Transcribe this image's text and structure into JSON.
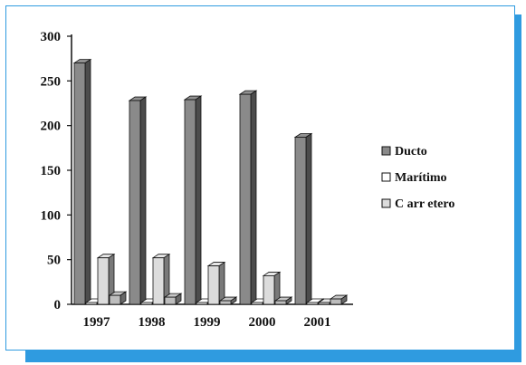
{
  "chart_data": {
    "type": "bar",
    "title": "",
    "xlabel": "",
    "ylabel": "",
    "categories": [
      "1997",
      "1998",
      "1999",
      "2000",
      "2001"
    ],
    "ylim": [
      0,
      300
    ],
    "yticks": [
      "0",
      "50",
      "100",
      "150",
      "200",
      "250",
      "300"
    ],
    "series": [
      {
        "name": "Ducto",
        "values": [
          270,
          228,
          229,
          235,
          187
        ],
        "color": "#8a8a8a"
      },
      {
        "name": "Marítimo",
        "values": [
          2,
          2,
          2,
          2,
          2
        ],
        "color": "#ffffff"
      },
      {
        "name": "C arr etero",
        "values": [
          52,
          52,
          43,
          32,
          2
        ],
        "color": "#dcdcdc"
      },
      {
        "name": "",
        "values": [
          10,
          8,
          4,
          4,
          6
        ],
        "color": "#bdbdbd"
      }
    ],
    "grid": false,
    "legend_position": "right"
  },
  "colors": {
    "frame_border": "#2f9be0",
    "frame_shadow": "#2f9be0"
  }
}
